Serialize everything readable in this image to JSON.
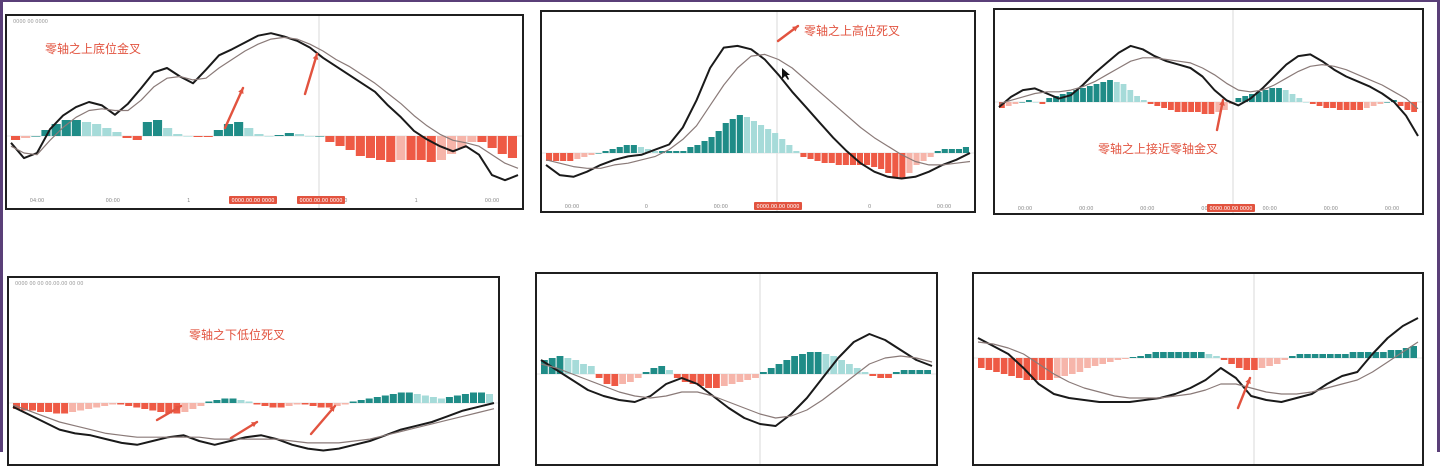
{
  "colors": {
    "positive": "#1f8c87",
    "positive_light": "#a6dbd9",
    "negative": "#ee5a45",
    "negative_light": "#f6b5aa",
    "dif_line": "#1a1a1a",
    "dea_line": "#8a7a78",
    "marker": "#e2533f",
    "frame": "#5a3f78"
  },
  "panels": [
    {
      "id": "p1",
      "header": "0000 00 0000",
      "caption": "零轴之上底位金叉",
      "ticks": [
        "04:00",
        "00:00",
        "1",
        "00:00",
        "00:00",
        "1",
        "00:00"
      ],
      "badges": [
        "0000.00.00 0000",
        "0000.00.00 0000"
      ],
      "chart_data": {
        "type": "line",
        "series": [
          {
            "values": [
              -8,
              -26,
              -20,
              8,
              24,
              34,
              40,
              36,
              25,
              38,
              56,
              75,
              80,
              70,
              62,
              78,
              95,
              102,
              110,
              118,
              121,
              117,
              112,
              104,
              92,
              82,
              72,
              62,
              52,
              36,
              22,
              6,
              -4,
              -12,
              -18,
              -12,
              -22,
              -46,
              -52,
              -46
            ]
          },
          {
            "values": [
              -12,
              -20,
              -22,
              -5,
              10,
              22,
              30,
              32,
              30,
              30,
              42,
              58,
              68,
              70,
              66,
              68,
              80,
              90,
              100,
              108,
              114,
              116,
              114,
              108,
              100,
              90,
              82,
              72,
              62,
              50,
              38,
              24,
              12,
              2,
              -5,
              -8,
              -12,
              -22,
              -32,
              -38
            ]
          }
        ],
        "histogram": [
          -4,
          -2,
          0,
          6,
          12,
          16,
          16,
          14,
          12,
          8,
          4,
          -2,
          -4,
          14,
          16,
          8,
          2,
          0,
          -1,
          -1,
          6,
          12,
          14,
          8,
          2,
          0,
          1,
          3,
          2,
          0,
          0,
          -6,
          -10,
          -14,
          -20,
          -22,
          -24,
          -26,
          -24,
          -24,
          -24,
          -26,
          -24,
          -18,
          -12,
          -6,
          -6,
          -12,
          -18,
          -22
        ]
      }
    },
    {
      "id": "p2",
      "caption": "零轴之上高位死叉",
      "ticks": [
        "00:00",
        "0",
        "00:00",
        "00:00",
        "0",
        "00:00"
      ],
      "badges": [
        "0000.00.00 0000"
      ],
      "chart_data": {
        "type": "line",
        "series": [
          {
            "values": [
              -14,
              -26,
              -28,
              -22,
              -14,
              -8,
              -4,
              -2,
              4,
              10,
              30,
              62,
              100,
              124,
              126,
              122,
              110,
              92,
              72,
              54,
              36,
              18,
              2,
              -12,
              -22,
              -28,
              -30,
              -28,
              -22,
              -14,
              -8,
              0
            ]
          },
          {
            "values": [
              -8,
              -12,
              -16,
              -18,
              -18,
              -14,
              -12,
              -8,
              -4,
              4,
              16,
              32,
              56,
              80,
              100,
              114,
              116,
              110,
              100,
              86,
              72,
              58,
              44,
              30,
              18,
              8,
              -2,
              -10,
              -14,
              -14,
              -12,
              -10
            ]
          }
        ],
        "histogram": [
          -8,
          -8,
          -8,
          -8,
          -6,
          -4,
          -2,
          0,
          2,
          4,
          6,
          8,
          8,
          6,
          4,
          2,
          2,
          2,
          2,
          2,
          6,
          8,
          12,
          16,
          22,
          30,
          34,
          38,
          36,
          32,
          28,
          24,
          20,
          14,
          8,
          2,
          -4,
          -6,
          -8,
          -10,
          -10,
          -12,
          -12,
          -12,
          -12,
          -12,
          -14,
          -16,
          -20,
          -24,
          -26,
          -20,
          -12,
          -8,
          -4,
          2,
          4,
          4,
          4,
          6
        ]
      }
    },
    {
      "id": "p3",
      "caption": "零轴之上接近零轴金叉",
      "ticks": [
        "00:00",
        "00:00",
        "00:00",
        "00:00",
        "00:00",
        "00:00",
        "00:00"
      ],
      "badges": [
        "0000.00.00 0000"
      ],
      "chart_data": {
        "type": "line",
        "series": [
          {
            "values": [
              -6,
              6,
              14,
              16,
              10,
              4,
              8,
              20,
              34,
              46,
              58,
              66,
              62,
              54,
              48,
              44,
              40,
              30,
              14,
              2,
              -4,
              4,
              16,
              30,
              44,
              54,
              56,
              48,
              38,
              30,
              24,
              18,
              10,
              0,
              -16,
              -40
            ]
          },
          {
            "values": [
              -2,
              2,
              6,
              10,
              12,
              12,
              14,
              18,
              24,
              32,
              40,
              48,
              52,
              52,
              50,
              48,
              46,
              40,
              32,
              22,
              14,
              12,
              14,
              20,
              28,
              36,
              42,
              44,
              42,
              38,
              32,
              26,
              20,
              12,
              4,
              -8
            ]
          }
        ],
        "histogram": [
          -6,
          -4,
          -2,
          0,
          2,
          0,
          -2,
          4,
          6,
          8,
          10,
          12,
          14,
          16,
          18,
          20,
          22,
          20,
          18,
          12,
          6,
          2,
          -2,
          -4,
          -6,
          -8,
          -10,
          -10,
          -10,
          -10,
          -12,
          -12,
          -10,
          -8,
          -2,
          4,
          6,
          8,
          10,
          12,
          14,
          14,
          12,
          8,
          4,
          0,
          -2,
          -4,
          -6,
          -6,
          -8,
          -8,
          -8,
          -8,
          -6,
          -4,
          -2,
          0,
          2,
          -4,
          -8,
          -10
        ]
      }
    },
    {
      "id": "p4",
      "header": "0000 00 00    00.00.00    00 00",
      "caption": "零轴之下低位死叉",
      "chart_data": {
        "type": "line",
        "series": [
          {
            "values": [
              -4,
              -12,
              -20,
              -28,
              -32,
              -34,
              -38,
              -42,
              -44,
              -40,
              -36,
              -34,
              -40,
              -44,
              -40,
              -36,
              -34,
              -38,
              -44,
              -48,
              -50,
              -48,
              -44,
              -40,
              -34,
              -28,
              -24,
              -20,
              -14,
              -8,
              -4,
              0
            ]
          },
          {
            "values": [
              -2,
              -8,
              -14,
              -20,
              -24,
              -28,
              -32,
              -34,
              -36,
              -36,
              -36,
              -36,
              -36,
              -38,
              -38,
              -38,
              -38,
              -38,
              -40,
              -42,
              -42,
              -42,
              -40,
              -38,
              -34,
              -30,
              -26,
              -22,
              -18,
              -14,
              -10,
              -6
            ]
          }
        ],
        "histogram": [
          -8,
          -10,
          -10,
          -12,
          -12,
          -14,
          -14,
          -12,
          -10,
          -8,
          -6,
          -4,
          -2,
          -2,
          -4,
          -6,
          -8,
          -10,
          -12,
          -14,
          -14,
          -12,
          -8,
          -4,
          2,
          4,
          6,
          6,
          4,
          2,
          -2,
          -4,
          -6,
          -6,
          -4,
          -2,
          -2,
          -4,
          -6,
          -6,
          -4,
          -2,
          2,
          4,
          6,
          8,
          10,
          12,
          14,
          14,
          12,
          10,
          8,
          6,
          8,
          10,
          12,
          14,
          14,
          12
        ]
      }
    },
    {
      "id": "p5",
      "chart_data": {
        "type": "line",
        "series": [
          {
            "values": [
              14,
              4,
              -6,
              -16,
              -22,
              -26,
              -28,
              -22,
              -10,
              -4,
              -10,
              -22,
              -34,
              -44,
              -50,
              -52,
              -40,
              -24,
              -4,
              16,
              32,
              40,
              34,
              24,
              14,
              8
            ]
          },
          {
            "values": [
              10,
              6,
              0,
              -6,
              -12,
              -18,
              -22,
              -24,
              -22,
              -18,
              -18,
              -22,
              -28,
              -34,
              -40,
              -44,
              -42,
              -36,
              -26,
              -14,
              -2,
              10,
              16,
              18,
              16,
              12
            ]
          }
        ],
        "histogram": [
          14,
          16,
          18,
          16,
          14,
          10,
          8,
          -4,
          -10,
          -12,
          -10,
          -8,
          -4,
          2,
          6,
          8,
          4,
          -4,
          -8,
          -10,
          -12,
          -14,
          -14,
          -12,
          -10,
          -8,
          -6,
          -4,
          2,
          6,
          10,
          14,
          18,
          20,
          22,
          22,
          20,
          18,
          14,
          10,
          6,
          2,
          -2,
          -4,
          -4,
          2,
          4,
          4,
          4,
          4
        ]
      }
    },
    {
      "id": "p6",
      "chart_data": {
        "type": "line",
        "series": [
          {
            "values": [
              20,
              12,
              4,
              -10,
              -26,
              -36,
              -40,
              -42,
              -44,
              -44,
              -44,
              -42,
              -40,
              -36,
              -30,
              -22,
              -10,
              -20,
              -38,
              -42,
              -44,
              -40,
              -36,
              -26,
              -18,
              -14,
              4,
              20,
              32,
              40
            ]
          },
          {
            "values": [
              16,
              14,
              10,
              4,
              -6,
              -16,
              -24,
              -30,
              -34,
              -38,
              -40,
              -40,
              -40,
              -38,
              -36,
              -32,
              -26,
              -26,
              -30,
              -34,
              -36,
              -36,
              -34,
              -30,
              -26,
              -22,
              -14,
              -4,
              6,
              16
            ]
          }
        ],
        "histogram": [
          -10,
          -12,
          -14,
          -16,
          -18,
          -20,
          -22,
          -22,
          -22,
          -22,
          -20,
          -18,
          -16,
          -14,
          -10,
          -8,
          -6,
          -4,
          -2,
          -1,
          1,
          2,
          4,
          6,
          6,
          6,
          6,
          6,
          6,
          6,
          4,
          2,
          -2,
          -6,
          -10,
          -12,
          -12,
          -10,
          -8,
          -6,
          -2,
          2,
          4,
          4,
          4,
          4,
          4,
          4,
          4,
          6,
          6,
          6,
          6,
          6,
          8,
          8,
          10,
          12
        ]
      }
    }
  ]
}
